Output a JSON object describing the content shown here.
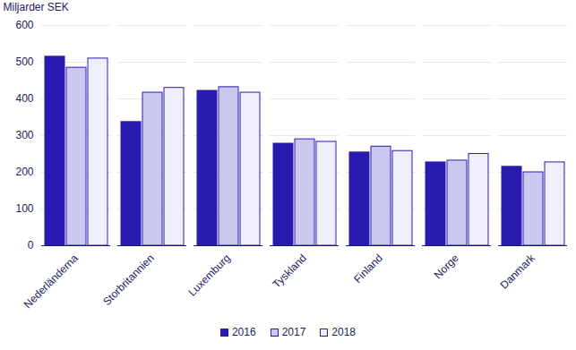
{
  "chart_data": {
    "type": "bar",
    "y_label": "Miljarder SEK",
    "categories": [
      "Nederländerna",
      "Storbritannien",
      "Luxemburg",
      "Tyskland",
      "Finland",
      "Norge",
      "Danmark"
    ],
    "series": [
      {
        "name": "2016",
        "color": "#2a1bb0",
        "values": [
          515,
          337,
          422,
          278,
          254,
          227,
          215
        ]
      },
      {
        "name": "2017",
        "color": "#cbc8ef",
        "values": [
          485,
          417,
          432,
          290,
          270,
          232,
          200
        ]
      },
      {
        "name": "2018",
        "color": "#efeefb",
        "values": [
          510,
          430,
          417,
          283,
          258,
          250,
          227
        ]
      }
    ],
    "ylim": [
      0,
      600
    ],
    "yticks": [
      0,
      100,
      200,
      300,
      400,
      500,
      600
    ],
    "grid": true,
    "legend": "bottom"
  }
}
